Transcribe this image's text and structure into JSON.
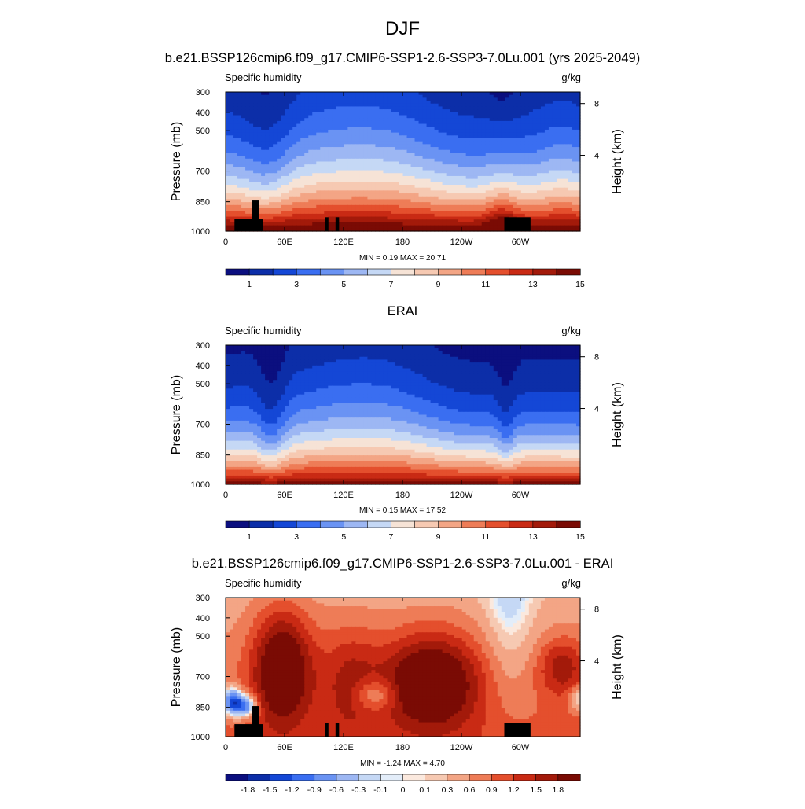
{
  "figure": {
    "title": "DJF",
    "panels": [
      {
        "id": "model",
        "title": "b.e21.BSSP126cmip6.f09_g17.CMIP6-SSP1-2.6-SSP3-7.0Lu.001 (yrs 2025-2049)",
        "left_label": "Specific humidity",
        "right_label": "g/kg",
        "minmax": "MIN =   0.19  MAX =  20.71",
        "palette": "full",
        "pattern": "model",
        "mask": true,
        "colorbar_labels": [
          "1",
          "3",
          "5",
          "7",
          "9",
          "11",
          "13",
          "15"
        ]
      },
      {
        "id": "obs",
        "title": "ERAI",
        "left_label": "Specific humidity",
        "right_label": "g/kg",
        "minmax": "MIN =   0.15  MAX =  17.52",
        "palette": "full",
        "pattern": "obs",
        "mask": false,
        "colorbar_labels": [
          "1",
          "3",
          "5",
          "7",
          "9",
          "11",
          "13",
          "15"
        ]
      },
      {
        "id": "diff",
        "title": "b.e21.BSSP126cmip6.f09_g17.CMIP6-SSP1-2.6-SSP3-7.0Lu.001 - ERAI",
        "left_label": "Specific humidity",
        "right_label": "g/kg",
        "minmax": "MIN =  -1.24  MAX =   4.70",
        "palette": "diff",
        "pattern": "diff",
        "mask": true,
        "colorbar_labels": [
          "-1.8",
          "-1.5",
          "-1.2",
          "-0.9",
          "-0.6",
          "-0.3",
          "-0.1",
          "0",
          "0.1",
          "0.3",
          "0.6",
          "0.9",
          "1.2",
          "1.5",
          "1.8"
        ]
      }
    ],
    "axes": {
      "ylabel": "Pressure (mb)",
      "y2label": "Height (km)",
      "xticks": [
        "0",
        "60E",
        "120E",
        "180",
        "120W",
        "60W"
      ],
      "yticks": [
        "300",
        "400",
        "500",
        "700",
        "850",
        "1000"
      ],
      "y2ticks": [
        "8",
        "4"
      ]
    },
    "colors": {
      "full": [
        "#0b0f7f",
        "#0c2ea8",
        "#1447d6",
        "#3a6ef1",
        "#6a93f3",
        "#9db7f3",
        "#c5d8f5",
        "#f6e3d6",
        "#f6c9b2",
        "#f3a585",
        "#ee7c57",
        "#e44f2d",
        "#c92a14",
        "#a31a0a",
        "#7a0b04"
      ],
      "diff": [
        "#0b0f7f",
        "#0c2ea8",
        "#1447d6",
        "#3a6ef1",
        "#6a93f3",
        "#9db7f3",
        "#c5d8f5",
        "#e3edf9",
        "#fbe9de",
        "#f6c9b2",
        "#f3a585",
        "#ee7c57",
        "#e44f2d",
        "#c92a14",
        "#a31a0a",
        "#7a0b04"
      ]
    }
  },
  "chart_data": [
    {
      "type": "heatmap",
      "title": "b.e21.BSSP126cmip6.f09_g17.CMIP6-SSP1-2.6-SSP3-7.0Lu.001 (yrs 2025-2049)",
      "variable": "Specific humidity",
      "units": "g/kg",
      "xlabel": "",
      "ylabel": "Pressure (mb)",
      "y2label": "Height (km)",
      "x_ticks": [
        "0",
        "60E",
        "120E",
        "180",
        "120W",
        "60W"
      ],
      "y_ticks": [
        300,
        400,
        500,
        700,
        850,
        1000
      ],
      "min": 0.19,
      "max": 20.71,
      "contour_levels": [
        1,
        3,
        5,
        7,
        9,
        11,
        13,
        15
      ]
    },
    {
      "type": "heatmap",
      "title": "ERAI",
      "variable": "Specific humidity",
      "units": "g/kg",
      "xlabel": "",
      "ylabel": "Pressure (mb)",
      "y2label": "Height (km)",
      "x_ticks": [
        "0",
        "60E",
        "120E",
        "180",
        "120W",
        "60W"
      ],
      "y_ticks": [
        300,
        400,
        500,
        700,
        850,
        1000
      ],
      "min": 0.15,
      "max": 17.52,
      "contour_levels": [
        1,
        3,
        5,
        7,
        9,
        11,
        13,
        15
      ]
    },
    {
      "type": "heatmap",
      "title": "b.e21.BSSP126cmip6.f09_g17.CMIP6-SSP1-2.6-SSP3-7.0Lu.001 - ERAI",
      "variable": "Specific humidity",
      "units": "g/kg",
      "xlabel": "",
      "ylabel": "Pressure (mb)",
      "y2label": "Height (km)",
      "x_ticks": [
        "0",
        "60E",
        "120E",
        "180",
        "120W",
        "60W"
      ],
      "y_ticks": [
        300,
        400,
        500,
        700,
        850,
        1000
      ],
      "min": -1.24,
      "max": 4.7,
      "contour_levels": [
        -1.8,
        -1.5,
        -1.2,
        -0.9,
        -0.6,
        -0.3,
        -0.1,
        0,
        0.1,
        0.3,
        0.6,
        0.9,
        1.2,
        1.5,
        1.8
      ]
    }
  ]
}
